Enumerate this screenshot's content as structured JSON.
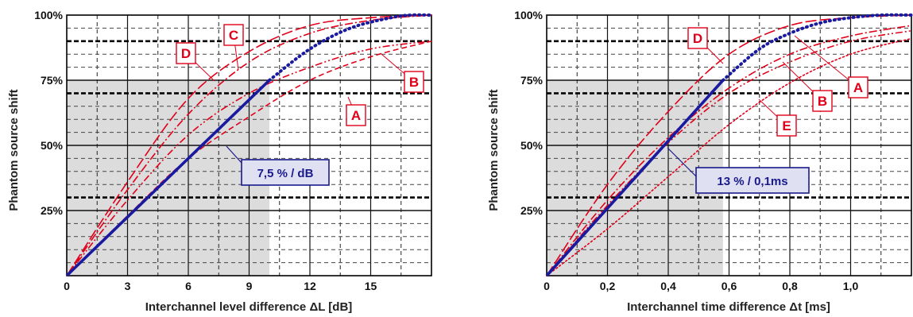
{
  "chart_data": [
    {
      "type": "line",
      "xlabel": "Interchannel level difference ΔL  [dB]",
      "ylabel": "Phantom source shift",
      "xlim": [
        0,
        18
      ],
      "ylim": [
        0,
        100
      ],
      "xticks": [
        0,
        3,
        6,
        9,
        12,
        15
      ],
      "xtick_labels": [
        "0",
        "3",
        "6",
        "9",
        "12",
        "15"
      ],
      "yticks": [
        25,
        50,
        75,
        100
      ],
      "ytick_labels": [
        "25%",
        "50%",
        "75%",
        "100%"
      ],
      "dashed_gridlines_y": [
        30,
        70,
        90
      ],
      "shaded_region": {
        "x": [
          0,
          10
        ],
        "y": [
          0,
          75
        ]
      },
      "callout": "7,5 % / dB",
      "grid": true,
      "series": [
        {
          "name": "A",
          "style": "dashed",
          "color": "#e0001a",
          "x": [
            0,
            3,
            6,
            9,
            12,
            15,
            18
          ],
          "y": [
            0,
            23,
            45,
            61,
            75,
            84,
            90
          ]
        },
        {
          "name": "B",
          "style": "dash-dot-dot",
          "color": "#e0001a",
          "x": [
            0,
            3,
            6,
            9,
            12,
            15,
            18
          ],
          "y": [
            0,
            29,
            54,
            70,
            80,
            87,
            90
          ]
        },
        {
          "name": "C",
          "style": "dash-dot",
          "color": "#e0001a",
          "x": [
            0,
            3,
            6,
            9,
            12,
            15,
            18
          ],
          "y": [
            0,
            33,
            62,
            82,
            93,
            98,
            100
          ]
        },
        {
          "name": "D",
          "style": "long-dash",
          "color": "#e0001a",
          "x": [
            0,
            3,
            6,
            9,
            12,
            15,
            18
          ],
          "y": [
            0,
            36,
            68,
            86,
            96,
            99,
            100
          ]
        },
        {
          "name": "",
          "style": "solid",
          "color": "#1a1aa0",
          "x": [
            0,
            10
          ],
          "y": [
            0,
            75
          ]
        },
        {
          "name": "",
          "style": "dotted",
          "color": "#1a1aa0",
          "x": [
            10,
            12,
            14,
            16,
            17,
            18
          ],
          "y": [
            75,
            87,
            95,
            99,
            100,
            100
          ]
        }
      ]
    },
    {
      "type": "line",
      "xlabel": "Interchannel time difference Δt  [ms]",
      "ylabel": "Phantom source shift",
      "xlim": [
        0,
        1.2
      ],
      "ylim": [
        0,
        100
      ],
      "xticks": [
        0,
        0.2,
        0.4,
        0.6,
        0.8,
        1.0
      ],
      "xtick_labels": [
        "0",
        "0,2",
        "0,4",
        "0,6",
        "0,8",
        "1,0"
      ],
      "yticks": [
        25,
        50,
        75,
        100
      ],
      "ytick_labels": [
        "25%",
        "50%",
        "75%",
        "100%"
      ],
      "dashed_gridlines_y": [
        30,
        70,
        90
      ],
      "shaded_region": {
        "x": [
          0,
          0.58
        ],
        "y": [
          0,
          75
        ]
      },
      "callout": "13 % / 0,1ms",
      "grid": true,
      "series": [
        {
          "name": "A",
          "style": "dash-dot",
          "color": "#e0001a",
          "x": [
            0,
            0.2,
            0.4,
            0.6,
            0.8,
            1.0,
            1.2
          ],
          "y": [
            0,
            29,
            53,
            72,
            85,
            92,
            96
          ]
        },
        {
          "name": "B",
          "style": "dash-dot-dot",
          "color": "#e0001a",
          "x": [
            0,
            0.2,
            0.4,
            0.6,
            0.8,
            1.0,
            1.2
          ],
          "y": [
            0,
            27,
            51,
            70,
            82,
            90,
            94
          ]
        },
        {
          "name": "D",
          "style": "long-dash",
          "color": "#e0001a",
          "x": [
            0,
            0.2,
            0.4,
            0.6,
            0.8,
            1.0,
            1.2
          ],
          "y": [
            0,
            35,
            63,
            85,
            96,
            99,
            100
          ]
        },
        {
          "name": "E",
          "style": "dotted",
          "color": "#e0001a",
          "x": [
            0,
            0.2,
            0.4,
            0.6,
            0.8,
            1.0,
            1.2
          ],
          "y": [
            0,
            18,
            38,
            58,
            74,
            85,
            91
          ]
        },
        {
          "name": "",
          "style": "solid",
          "color": "#1a1aa0",
          "x": [
            0,
            0.58
          ],
          "y": [
            0,
            75
          ]
        },
        {
          "name": "",
          "style": "dotted",
          "color": "#1a1aa0",
          "x": [
            0.58,
            0.7,
            0.8,
            0.9,
            1.0,
            1.1,
            1.2
          ],
          "y": [
            75,
            87,
            93,
            97,
            99,
            100,
            100
          ]
        }
      ]
    }
  ]
}
